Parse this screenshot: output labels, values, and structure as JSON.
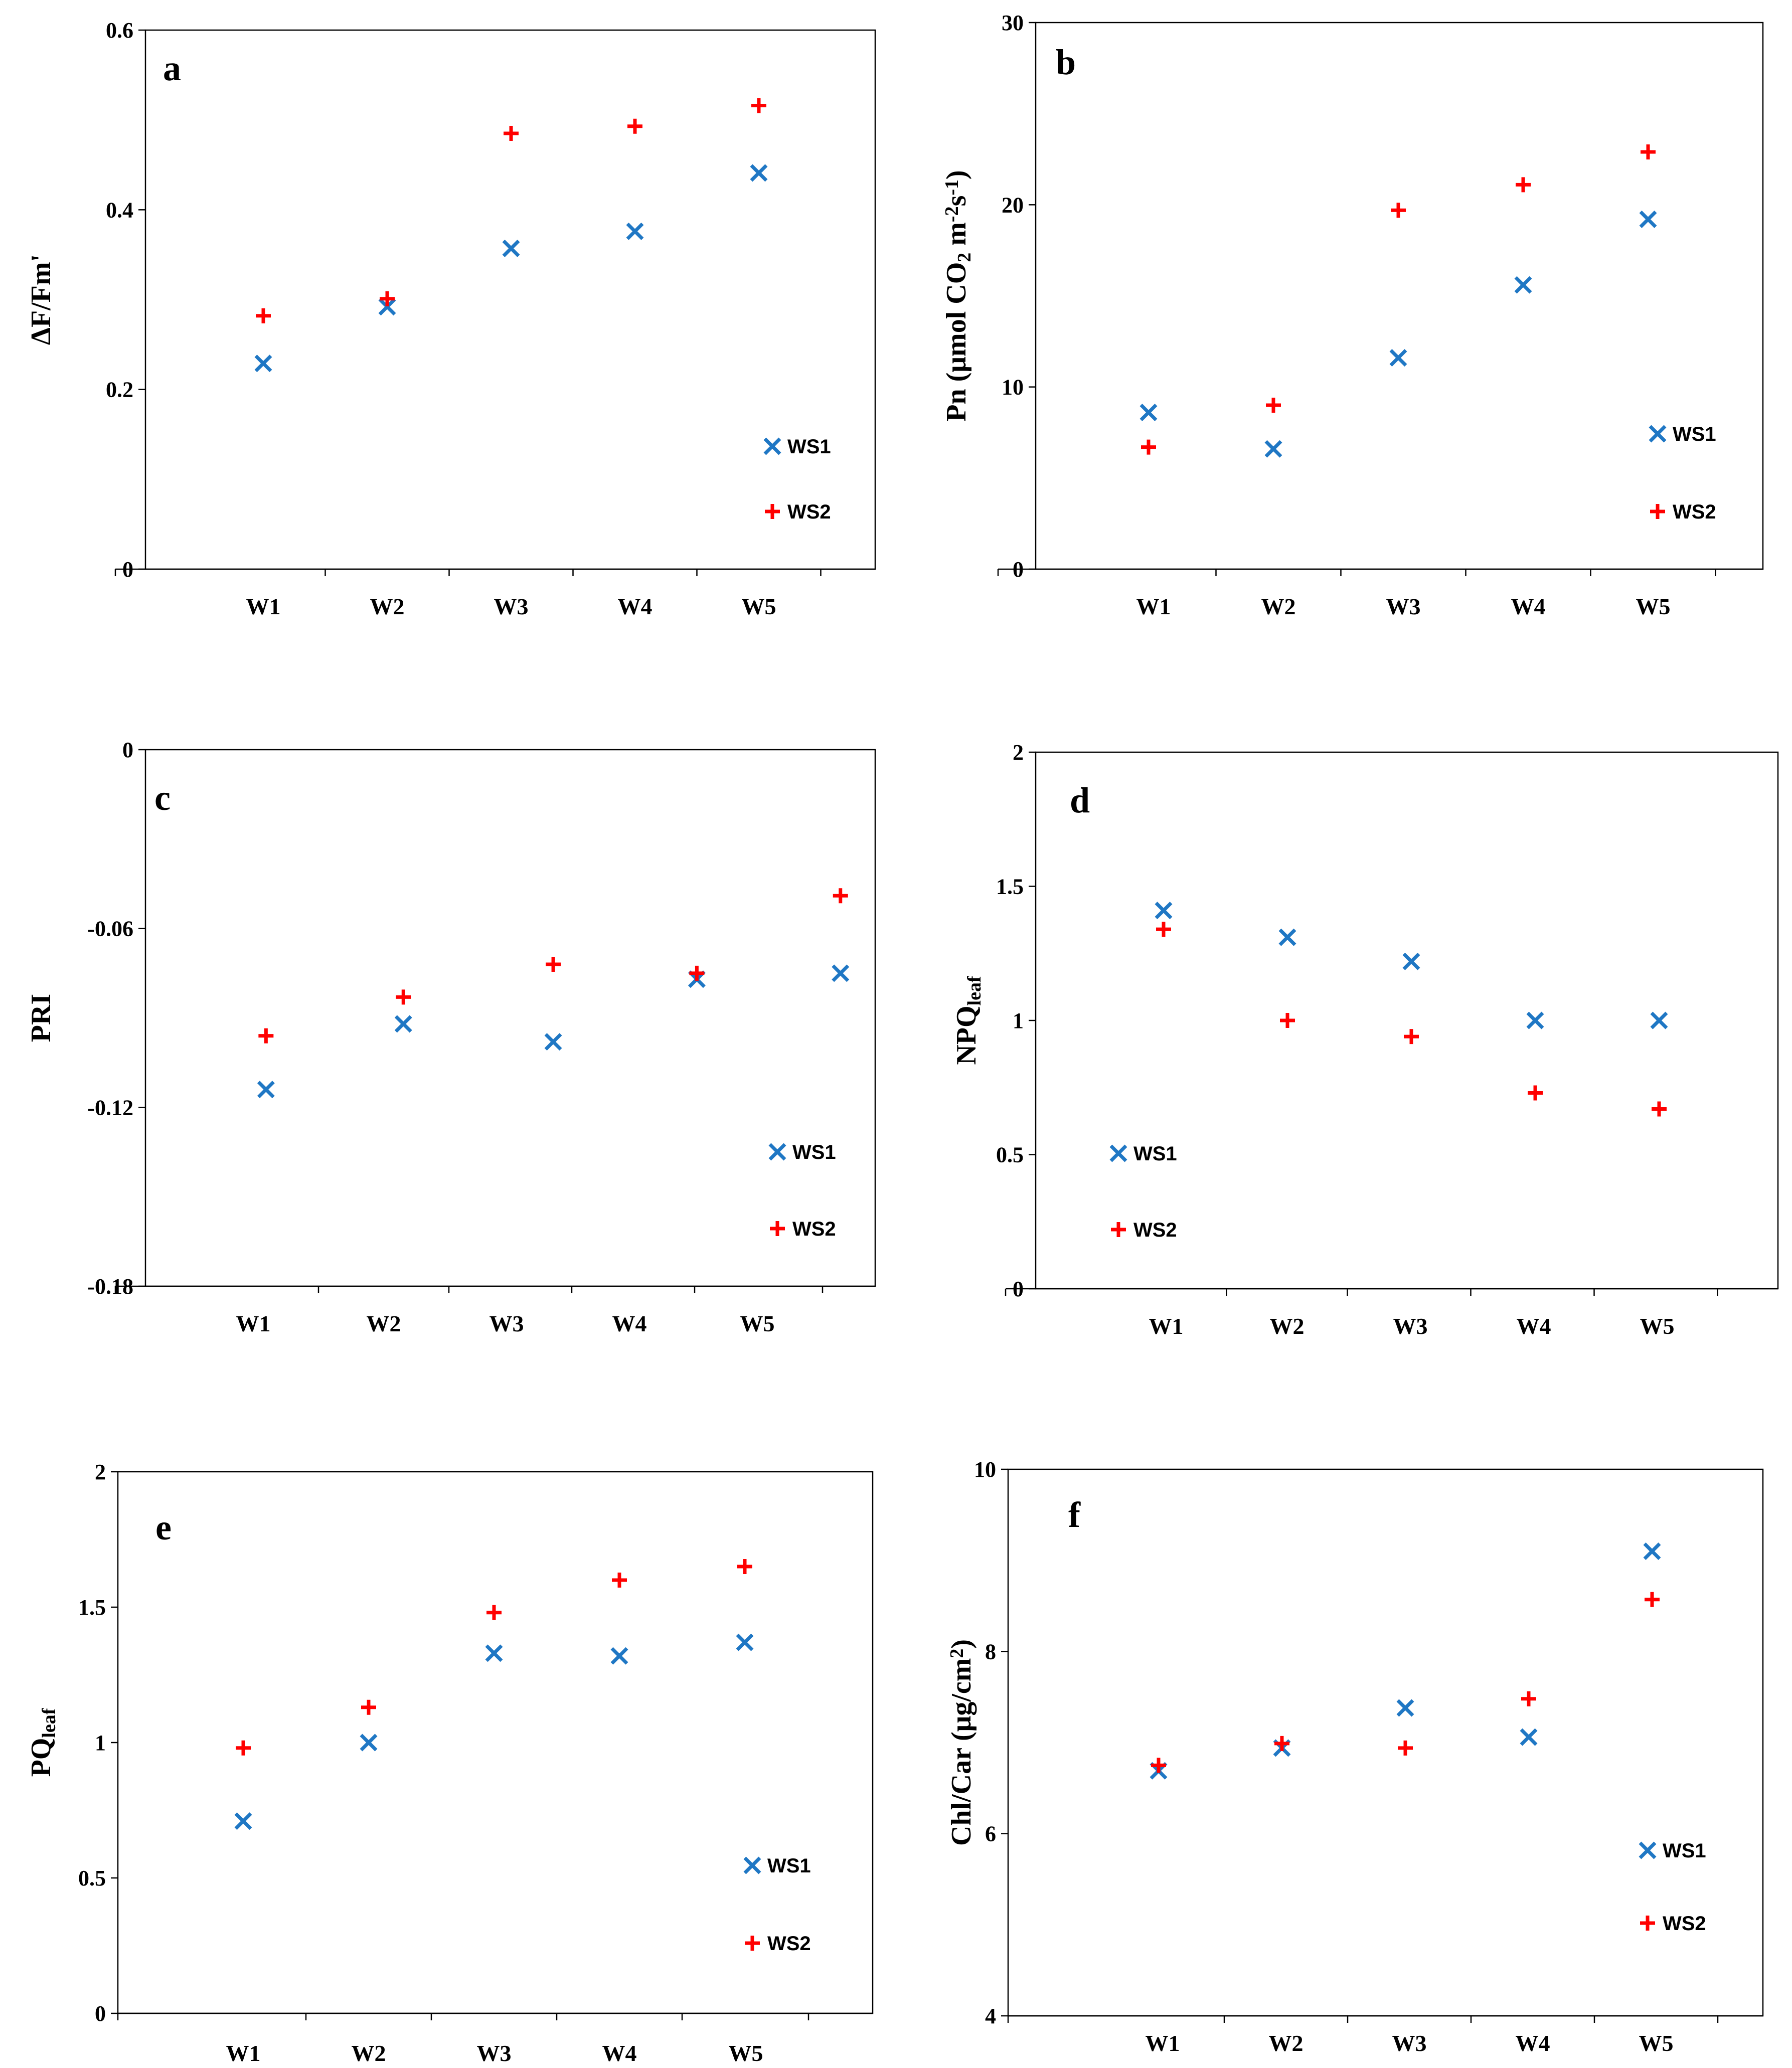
{
  "chart_data": [
    {
      "type": "scatter",
      "panel_label": "a",
      "ylabel": "ΔF/Fm'",
      "categories": [
        "W1",
        "W2",
        "W3",
        "W4",
        "W5"
      ],
      "ylim": [
        0,
        0.6
      ],
      "yticks": [
        0,
        0.2,
        0.4,
        0.6
      ],
      "ytick_labels": [
        "0",
        "0.2",
        "0.4",
        "0.6"
      ],
      "legend_position": "bottom-right",
      "series": [
        {
          "name": "WS1",
          "marker": "x",
          "color": "#1f77c4",
          "x": [
            1,
            2,
            3,
            4,
            5
          ],
          "values": [
            0.229,
            0.292,
            0.357,
            0.376,
            0.441
          ]
        },
        {
          "name": "WS2",
          "marker": "+",
          "color": "#ff0000",
          "x": [
            1,
            2,
            3,
            4,
            5
          ],
          "values": [
            0.282,
            0.301,
            0.485,
            0.493,
            0.516
          ]
        }
      ]
    },
    {
      "type": "scatter",
      "panel_label": "b",
      "ylabel_parts": [
        "Pn (μmol CO",
        "2",
        " m",
        "-2",
        "s",
        "-1",
        ")"
      ],
      "categories": [
        "W1",
        "W2",
        "W3",
        "W4",
        "W5"
      ],
      "ylim": [
        0,
        30
      ],
      "yticks": [
        0,
        10,
        20,
        30
      ],
      "ytick_labels": [
        "0",
        "10",
        "20",
        "30"
      ],
      "legend_position": "bottom-right",
      "series": [
        {
          "name": "WS1",
          "marker": "x",
          "color": "#1f77c4",
          "x": [
            1,
            2,
            3,
            4,
            5
          ],
          "values": [
            8.6,
            6.6,
            11.6,
            15.6,
            19.2
          ]
        },
        {
          "name": "WS2",
          "marker": "+",
          "color": "#ff0000",
          "x": [
            1,
            2,
            3,
            4,
            5
          ],
          "values": [
            6.7,
            9.0,
            19.7,
            21.1,
            22.9
          ]
        }
      ]
    },
    {
      "type": "scatter",
      "panel_label": "c",
      "ylabel": "PRI",
      "categories": [
        "W1",
        "W2",
        "W3",
        "W4",
        "W5"
      ],
      "ylim": [
        -0.18,
        0
      ],
      "yticks": [
        -0.18,
        -0.12,
        -0.06,
        0
      ],
      "ytick_labels": [
        "-0.18",
        "-0.12",
        "-0.06",
        "0"
      ],
      "legend_position": "bottom-right",
      "series": [
        {
          "name": "WS1",
          "marker": "x",
          "color": "#1f77c4",
          "x": [
            1.15,
            2.25,
            3.45,
            4.6,
            5.75
          ],
          "values": [
            -0.114,
            -0.092,
            -0.098,
            -0.077,
            -0.075
          ]
        },
        {
          "name": "WS2",
          "marker": "+",
          "color": "#ff0000",
          "x": [
            1.15,
            2.25,
            3.45,
            4.6,
            5.75
          ],
          "values": [
            -0.096,
            -0.083,
            -0.072,
            -0.075,
            -0.049
          ]
        }
      ]
    },
    {
      "type": "scatter",
      "panel_label": "d",
      "ylabel_parts": [
        "NPQ",
        "leaf"
      ],
      "categories": [
        "W1",
        "W2",
        "W3",
        "W4",
        "W5"
      ],
      "ylim": [
        0,
        2
      ],
      "yticks": [
        0,
        0.5,
        1,
        1.5,
        2
      ],
      "ytick_labels": [
        "0",
        "0.5",
        "1",
        "1.5",
        "2"
      ],
      "legend_position": "bottom-left",
      "series": [
        {
          "name": "WS1",
          "marker": "x",
          "color": "#1f77c4",
          "x": [
            1,
            2,
            3,
            4,
            5
          ],
          "values": [
            1.41,
            1.31,
            1.22,
            1.0,
            1.0
          ]
        },
        {
          "name": "WS2",
          "marker": "+",
          "color": "#ff0000",
          "x": [
            1,
            2,
            3,
            4,
            5
          ],
          "values": [
            1.34,
            1.0,
            0.94,
            0.73,
            0.67
          ]
        }
      ]
    },
    {
      "type": "scatter",
      "panel_label": "e",
      "ylabel_parts": [
        "PQ",
        "leaf"
      ],
      "categories": [
        "W1",
        "W2",
        "W3",
        "W4",
        "W5"
      ],
      "ylim": [
        0,
        2
      ],
      "yticks": [
        0,
        0.5,
        1,
        1.5,
        2
      ],
      "ytick_labels": [
        "0",
        "0.5",
        "1",
        "1.5",
        "2"
      ],
      "legend_position": "bottom-right",
      "series": [
        {
          "name": "WS1",
          "marker": "x",
          "color": "#1f77c4",
          "x": [
            1,
            2,
            3,
            4,
            5
          ],
          "values": [
            0.71,
            1.0,
            1.33,
            1.32,
            1.37
          ]
        },
        {
          "name": "WS2",
          "marker": "+",
          "color": "#ff0000",
          "x": [
            1,
            2,
            3,
            4,
            5
          ],
          "values": [
            0.98,
            1.13,
            1.48,
            1.6,
            1.65
          ]
        }
      ]
    },
    {
      "type": "scatter",
      "panel_label": "f",
      "ylabel_parts": [
        "Chl/Car  (μg/cm",
        "2",
        ")"
      ],
      "categories": [
        "W1",
        "W2",
        "W3",
        "W4",
        "W5"
      ],
      "ylim": [
        4,
        10
      ],
      "yticks": [
        4,
        6,
        8,
        10
      ],
      "ytick_labels": [
        "4",
        "6",
        "8",
        "10"
      ],
      "legend_position": "bottom-right",
      "series": [
        {
          "name": "WS1",
          "marker": "x",
          "color": "#1f77c4",
          "x": [
            1,
            2,
            3,
            4,
            5
          ],
          "values": [
            6.69,
            6.94,
            7.38,
            7.06,
            9.1
          ]
        },
        {
          "name": "WS2",
          "marker": "+",
          "color": "#ff0000",
          "x": [
            1,
            2,
            3,
            4,
            5
          ],
          "values": [
            6.75,
            6.99,
            6.94,
            7.48,
            8.57
          ]
        }
      ]
    }
  ]
}
